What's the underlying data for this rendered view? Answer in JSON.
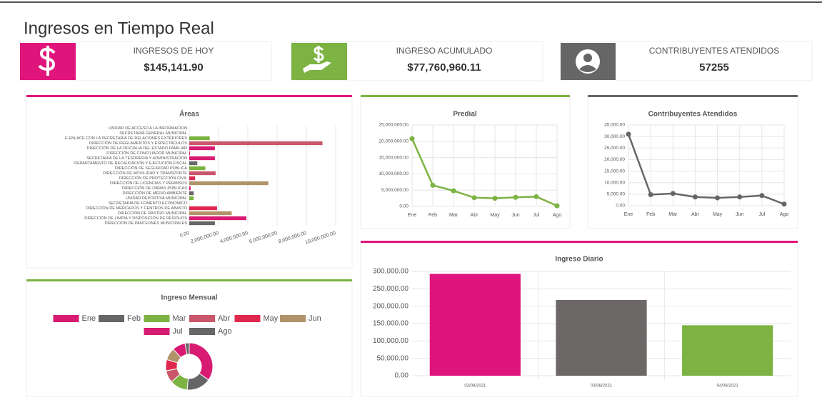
{
  "header": {
    "title": "Ingresos en Tiempo Real"
  },
  "cards": [
    {
      "label": "INGRESOS DE HOY",
      "value": "$145,141.90"
    },
    {
      "label": "INGRESO ACUMULADO",
      "value": "$77,760,960.11"
    },
    {
      "label": "CONTRIBUYENTES ATENDIDOS",
      "value": "57255"
    }
  ],
  "chart_data": [
    {
      "type": "hbar",
      "title": "Áreas",
      "categories": [
        "UNIDAD DE ACCESO A LA INFORMACION",
        "SECRETARIA GENERAL MUNICIPAL",
        "E ENLACE CON LA SECRETARIA DE RELACIONES EXTERIORES",
        "DIRECCIÓN DE REGLAMENTOS Y ESPECTÁCULOS",
        "DIRECCIÓN DE LA OFICIALIA DEL ESTADO FAMILIAR",
        "DIRECCIÓN DE CONCILIADOR MUNICIPAL",
        "SECRETARIA DE LA TESORERIA Y ADMINISTRACION",
        "DEPARTAMENTO DE RECAUDACIÓN Y EJECUCIÓN FISCAL",
        "DIRECCIÓN DE SEGURIDAD PÚBLICA",
        "DIRECCIÓN DE MOVILIDAD Y TRANSPORTE",
        "DIRECCIÓN DE PROTECCIÓN CIVIL",
        "DIRECCIÓN DE LICENCIAS Y PERMISOS",
        "DIRECCIÓN DE OBRAS PÚBLICAS",
        "DIRECCIÓN DE MEDIO AMBIENTE",
        "UNIDAD DEPORTIVA MUNICIPAL",
        "SECRETARIA DE FOMENTO ECONOMICO",
        "DIRECCIÓN DE MERCADOS Y CENTROS DE ABASTO",
        "DIRECCIÓN DE RASTRO MUNICIPAL",
        "DIRECCIÓN DE LIMPIA Y DISPOSICIÓN DE RESIDUOS",
        "DIRECCIÓN DE PANTEONES MUNICIPALES"
      ],
      "values": [
        0,
        0,
        1400000,
        9100000,
        1750000,
        50000,
        1750000,
        550000,
        1100000,
        1800000,
        400000,
        5400000,
        100000,
        300000,
        300000,
        0,
        1900000,
        2900000,
        3900000,
        1750000
      ],
      "colors": [
        "#d81b72",
        "#666666",
        "#7cb342",
        "#c9566a",
        "#d81b72",
        "#e0284f",
        "#d81b72",
        "#666666",
        "#7cb342",
        "#c9566a",
        "#e0284f",
        "#b0936a",
        "#d81b72",
        "#666666",
        "#7cb342",
        "#c9566a",
        "#e0284f",
        "#b0936a",
        "#d81b72",
        "#666666"
      ],
      "xlim": [
        0,
        10000000
      ],
      "xticks": [
        {
          "value": 0,
          "label": "0.00"
        },
        {
          "value": 2000000,
          "label": "2,000,000.00"
        },
        {
          "value": 4000000,
          "label": "4,000,000.00"
        },
        {
          "value": 6000000,
          "label": "6,000,000.00"
        },
        {
          "value": 8000000,
          "label": "8,000,000.00"
        },
        {
          "value": 10000000,
          "label": "10,000,000.00"
        }
      ],
      "grid": true
    },
    {
      "type": "line",
      "title": "Predial",
      "color": "#7cb342",
      "categories": [
        "Ene",
        "Feb",
        "Mar",
        "Abr",
        "May",
        "Jun",
        "Jul",
        "Ago"
      ],
      "values": [
        20800000,
        6500000,
        4800000,
        2700000,
        2500000,
        2800000,
        3000000,
        200000
      ],
      "ylim": [
        0,
        25000000
      ],
      "yticks": [
        {
          "value": 0,
          "label": "0.00"
        },
        {
          "value": 5000000,
          "label": "5,000,000.00"
        },
        {
          "value": 10000000,
          "label": "10,000,000.00"
        },
        {
          "value": 15000000,
          "label": "15,000,000.00"
        },
        {
          "value": 20000000,
          "label": "20,000,000.00"
        },
        {
          "value": 25000000,
          "label": "25,000,000.00"
        }
      ],
      "grid": true
    },
    {
      "type": "line",
      "title": "Contribuyentes Atendidos",
      "color": "#666666",
      "categories": [
        "Ene",
        "Feb",
        "Mar",
        "Abr",
        "May",
        "Jun",
        "Jul",
        "Ago"
      ],
      "values": [
        31000,
        4800,
        5300,
        3800,
        3400,
        3800,
        4400,
        700
      ],
      "ylim": [
        0,
        35000
      ],
      "yticks": [
        {
          "value": 0,
          "label": "0.00"
        },
        {
          "value": 5000,
          "label": "5,000.00"
        },
        {
          "value": 10000,
          "label": "10,000.00"
        },
        {
          "value": 15000,
          "label": "15,000.00"
        },
        {
          "value": 20000,
          "label": "20,000.00"
        },
        {
          "value": 25000,
          "label": "25,000.00"
        },
        {
          "value": 30000,
          "label": "30,000.00"
        },
        {
          "value": 35000,
          "label": "35,000.00"
        }
      ],
      "grid": true
    },
    {
      "type": "doughnut",
      "title": "Ingreso Mensual",
      "categories": [
        "Ene",
        "Feb",
        "Mar",
        "Abr",
        "May",
        "Jun",
        "Jul",
        "Ago"
      ],
      "values": [
        27000000,
        13000000,
        9500000,
        6500000,
        6000000,
        6500000,
        7000000,
        2260000
      ],
      "colors": [
        "#d81b72",
        "#666666",
        "#7cb342",
        "#c9566a",
        "#e0284f",
        "#b0936a",
        "#d81b72",
        "#666666"
      ]
    },
    {
      "type": "bar",
      "title": "Ingreso Diario",
      "categories": [
        "02/08/2021",
        "03/08/2021",
        "04/08/2021"
      ],
      "values": [
        293000,
        218000,
        145141.9
      ],
      "colors": [
        "#e0157b",
        "#6d6868",
        "#7cb342"
      ],
      "ylim": [
        0,
        300000
      ],
      "yticks": [
        {
          "value": 0,
          "label": "0.00"
        },
        {
          "value": 50000,
          "label": "50,000.00"
        },
        {
          "value": 100000,
          "label": "100,000.00"
        },
        {
          "value": 150000,
          "label": "150,000.00"
        },
        {
          "value": 200000,
          "label": "200,000.00"
        },
        {
          "value": 250000,
          "label": "250,000.00"
        },
        {
          "value": 300000,
          "label": "300,000.00"
        }
      ],
      "grid": true
    }
  ]
}
